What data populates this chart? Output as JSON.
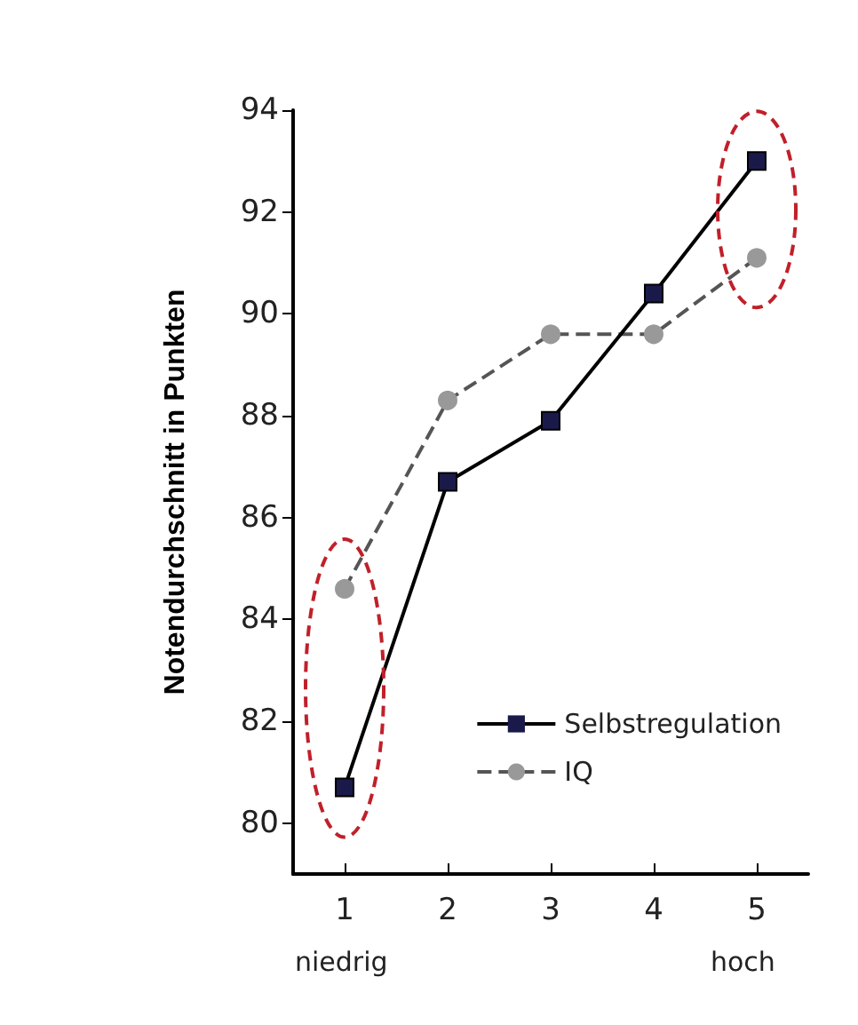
{
  "chart_data": {
    "type": "line",
    "ylabel": "Notendurchschnitt in Punkten",
    "x": [
      1,
      2,
      3,
      4,
      5
    ],
    "series": [
      {
        "name": "Selbstregulation",
        "color": "#1a1a4a",
        "marker": "square",
        "line_style": "solid",
        "values": [
          80.7,
          86.7,
          87.9,
          90.4,
          93.0
        ]
      },
      {
        "name": "IQ",
        "color": "#999999",
        "marker": "circle",
        "line_style": "dashed",
        "values": [
          84.6,
          88.3,
          89.6,
          89.6,
          91.1
        ]
      }
    ],
    "xlim": [
      0.5,
      5.5
    ],
    "xticks": [
      1,
      2,
      3,
      4,
      5
    ],
    "ylim": [
      79,
      94
    ],
    "yticks": [
      80,
      82,
      84,
      86,
      88,
      90,
      92,
      94
    ],
    "grid": false,
    "legend": "bottom right",
    "annotations": [
      "niedrig",
      "hoch"
    ]
  }
}
